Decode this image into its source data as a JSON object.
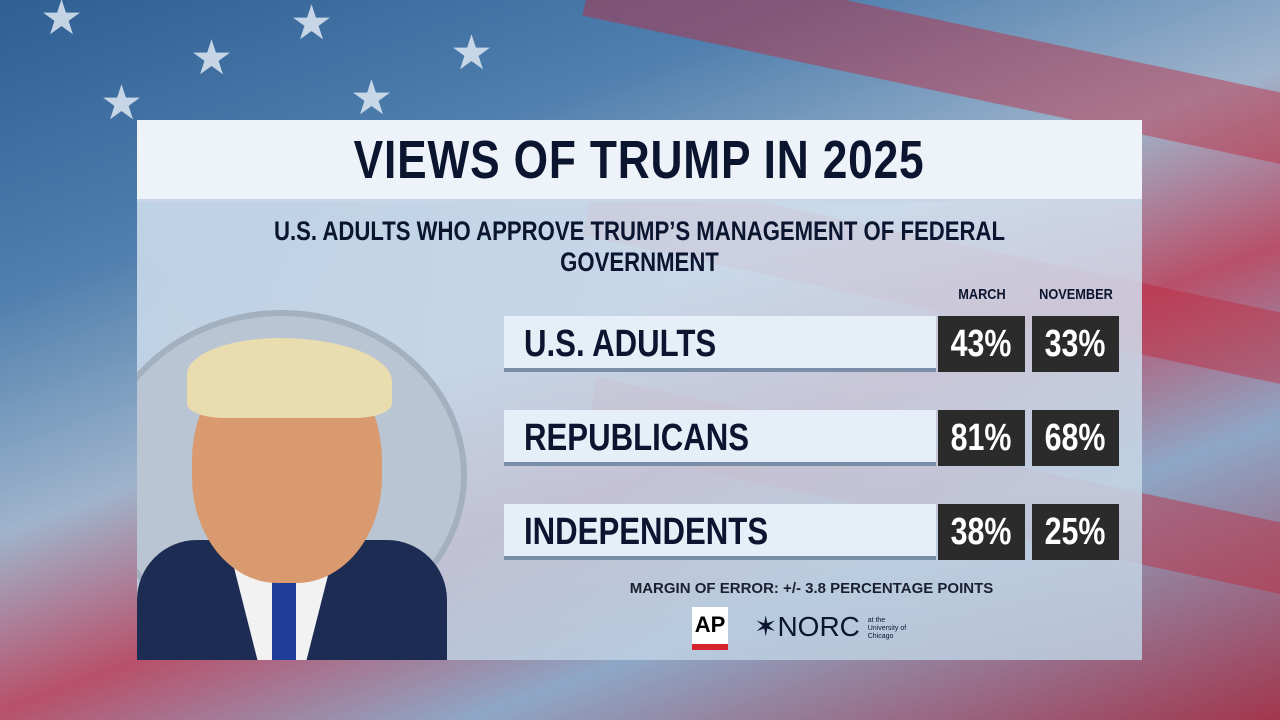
{
  "header": {
    "title": "VIEWS OF TRUMP IN 2025",
    "subtitle": "U.S. ADULTS WHO APPROVE TRUMP’S MANAGEMENT OF FEDERAL GOVERNMENT"
  },
  "chart_data": {
    "type": "table",
    "title": "VIEWS OF TRUMP IN 2025",
    "subtitle": "U.S. ADULTS WHO APPROVE TRUMP’S MANAGEMENT OF FEDERAL GOVERNMENT",
    "columns": [
      "MARCH",
      "NOVEMBER"
    ],
    "rows": [
      {
        "label": "U.S. ADULTS",
        "values": [
          "43%",
          "33%"
        ]
      },
      {
        "label": "REPUBLICANS",
        "values": [
          "81%",
          "68%"
        ]
      },
      {
        "label": "INDEPENDENTS",
        "values": [
          "38%",
          "25%"
        ]
      }
    ]
  },
  "footer": {
    "margin_of_error": "MARGIN OF ERROR: +/- 3.8 PERCENTAGE POINTS",
    "logos": {
      "ap": "AP",
      "norc": "✶NORC",
      "norc_sub": "at the University of Chicago"
    }
  },
  "colors": {
    "value_box": "#2b2b2b",
    "title_text": "#0c1530",
    "ap_red": "#d6242f"
  }
}
